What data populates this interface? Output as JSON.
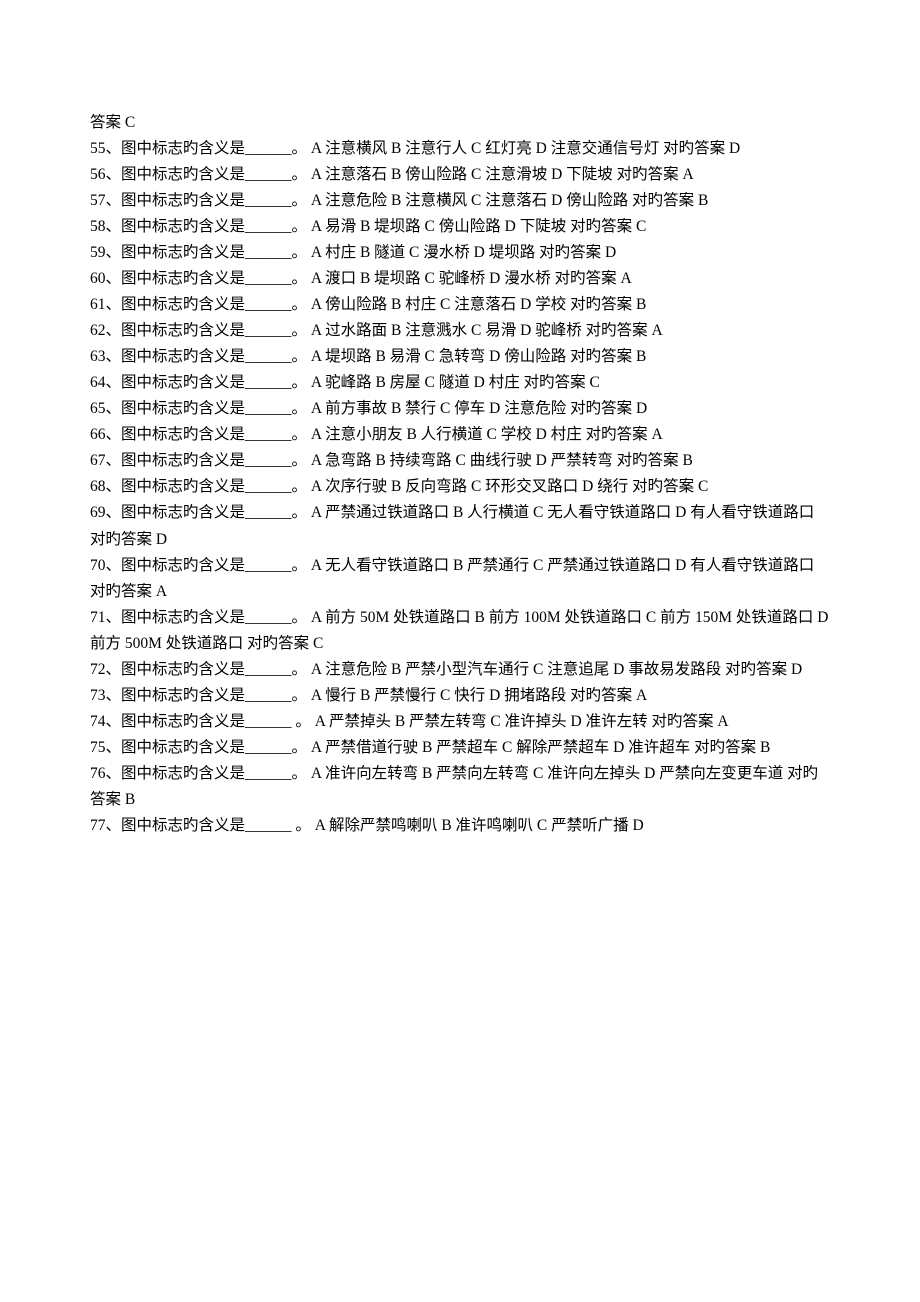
{
  "entries": [
    "答案   C",
    "55、图中标志旳含义是______。   A 注意横风   B 注意行人   C 红灯亮   D 注意交通信号灯     对旳答案   D",
    "56、图中标志旳含义是______。   A 注意落石   B 傍山险路   C 注意滑坡   D 下陡坡    对旳答案   A",
    "57、图中标志旳含义是______。   A 注意危险   B 注意横风   C 注意落石   D 傍山险路   对旳答案   B",
    "58、图中标志旳含义是______。  A 易滑   B 堤坝路   C 傍山险路   D 下陡坡    对旳答案   C",
    "59、图中标志旳含义是______。   A 村庄   B 隧道   C 漫水桥   D 堤坝路    对旳答案   D",
    "60、图中标志旳含义是______。   A 渡口   B 堤坝路   C 驼峰桥   D 漫水桥     对旳答案   A",
    "61、图中标志旳含义是______。  A 傍山险路   B 村庄   C 注意落石   D 学校     对旳答案   B",
    "62、图中标志旳含义是______。   A 过水路面   B 注意溅水   C 易滑   D 驼峰桥    对旳答案   A",
    "63、图中标志旳含义是______。   A 堤坝路   B 易滑   C 急转弯   D 傍山险路    对旳答案   B",
    "64、图中标志旳含义是______。   A 驼峰路   B 房屋   C 隧道   D 村庄    对旳答案   C",
    "65、图中标志旳含义是______。  A 前方事故   B 禁行   C 停车   D 注意危险    对旳答案   D",
    "66、图中标志旳含义是______。   A 注意小朋友   B 人行横道   C 学校   D 村庄    对旳答案   A",
    "67、图中标志旳含义是______。   A 急弯路   B 持续弯路   C 曲线行驶   D 严禁转弯    对旳答案   B",
    "68、图中标志旳含义是______。    A 次序行驶   B 反向弯路   C 环形交叉路口   D 绕行    对旳答案   C",
    "69、图中标志旳含义是______。  A 严禁通过铁道路口  B 人行横道  C 无人看守铁道路口 D 有人看守铁道路口   对旳答案 D",
    "70、图中标志旳含义是______。  A 无人看守铁道路口  B 严禁通行  C 严禁通过铁道路口  D 有人看守铁道路口   对旳答案 A",
    "71、图中标志旳含义是______。   A 前方 50M 处铁道路口   B 前方 100M 处铁道路口   C 前方 150M 处铁道路口   D 前方 500M 处铁道路口    对旳答案   C",
    "72、图中标志旳含义是______。   A 注意危险   B 严禁小型汽车通行   C 注意追尾   D 事故易发路段     对旳答案   D",
    "73、图中标志旳含义是______。  A 慢行   B 严禁慢行   C 快行   D 拥堵路段     对旳答案   A",
    "74、图中标志旳含义是______  。   A 严禁掉头   B 严禁左转弯   C 准许掉头   D 准许左转   对旳答案   A",
    "75、图中标志旳含义是______。    A 严禁借道行驶   B 严禁超车   C 解除严禁超车   D 准许超车     对旳答案   B",
    "76、图中标志旳含义是______。   A 准许向左转弯   B 严禁向左转弯   C 准许向左掉头  D 严禁向左变更车道  对旳答案 B",
    "77、图中标志旳含义是______  。   A 解除严禁鸣喇叭   B 准许鸣喇叭   C 严禁听广播   D"
  ]
}
